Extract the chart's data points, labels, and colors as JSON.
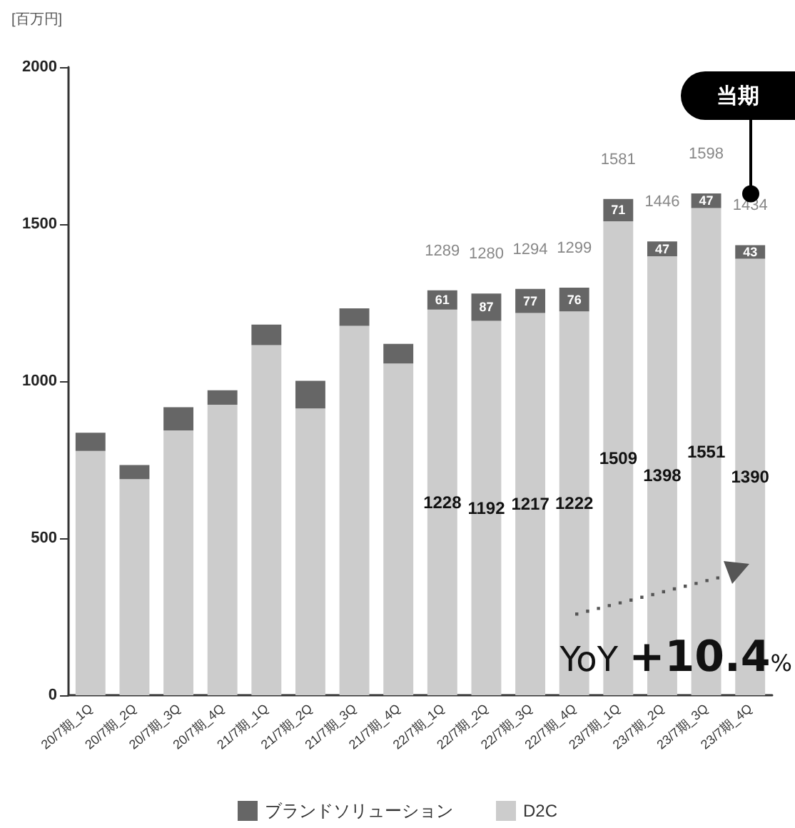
{
  "chart_data": {
    "type": "bar",
    "stacked": true,
    "ylabel": "[百万円]",
    "categories": [
      "20/7期_1Q",
      "20/7期_2Q",
      "20/7期_3Q",
      "20/7期_4Q",
      "21/7期_1Q",
      "21/7期_2Q",
      "21/7期_3Q",
      "21/7期_4Q",
      "22/7期_1Q",
      "22/7期_2Q",
      "22/7期_3Q",
      "22/7期_4Q",
      "23/7期_1Q",
      "23/7期_2Q",
      "23/7期_3Q",
      "23/7期_4Q"
    ],
    "series": [
      {
        "name": "D2C",
        "color": "#cccccc",
        "values": [
          778,
          688,
          843,
          925,
          1115,
          913,
          1176,
          1056,
          1228,
          1192,
          1217,
          1222,
          1509,
          1398,
          1551,
          1390
        ],
        "value_labels": [
          null,
          null,
          null,
          null,
          null,
          null,
          null,
          null,
          "1228",
          "1192",
          "1217",
          "1222",
          "1509",
          "1398",
          "1551",
          "1390"
        ]
      },
      {
        "name": "ブランドソリューション",
        "color": "#666666",
        "values": [
          58,
          45,
          74,
          46,
          65,
          88,
          56,
          63,
          61,
          87,
          77,
          76,
          71,
          47,
          47,
          43
        ],
        "value_labels": [
          null,
          null,
          null,
          null,
          null,
          null,
          null,
          null,
          "61",
          "87",
          "77",
          "76",
          "71",
          "47",
          "47",
          "43"
        ]
      }
    ],
    "totals": [
      null,
      null,
      null,
      null,
      null,
      null,
      null,
      null,
      "1289",
      "1280",
      "1294",
      "1299",
      "1581",
      "1446",
      "1598",
      "1434"
    ],
    "ylim": [
      0,
      2000
    ],
    "yticks": [
      0,
      500,
      1000,
      1500,
      2000
    ],
    "grid": false,
    "legend": "bottom",
    "annotations": [
      "当期",
      "YoY +10.4%"
    ]
  }
}
